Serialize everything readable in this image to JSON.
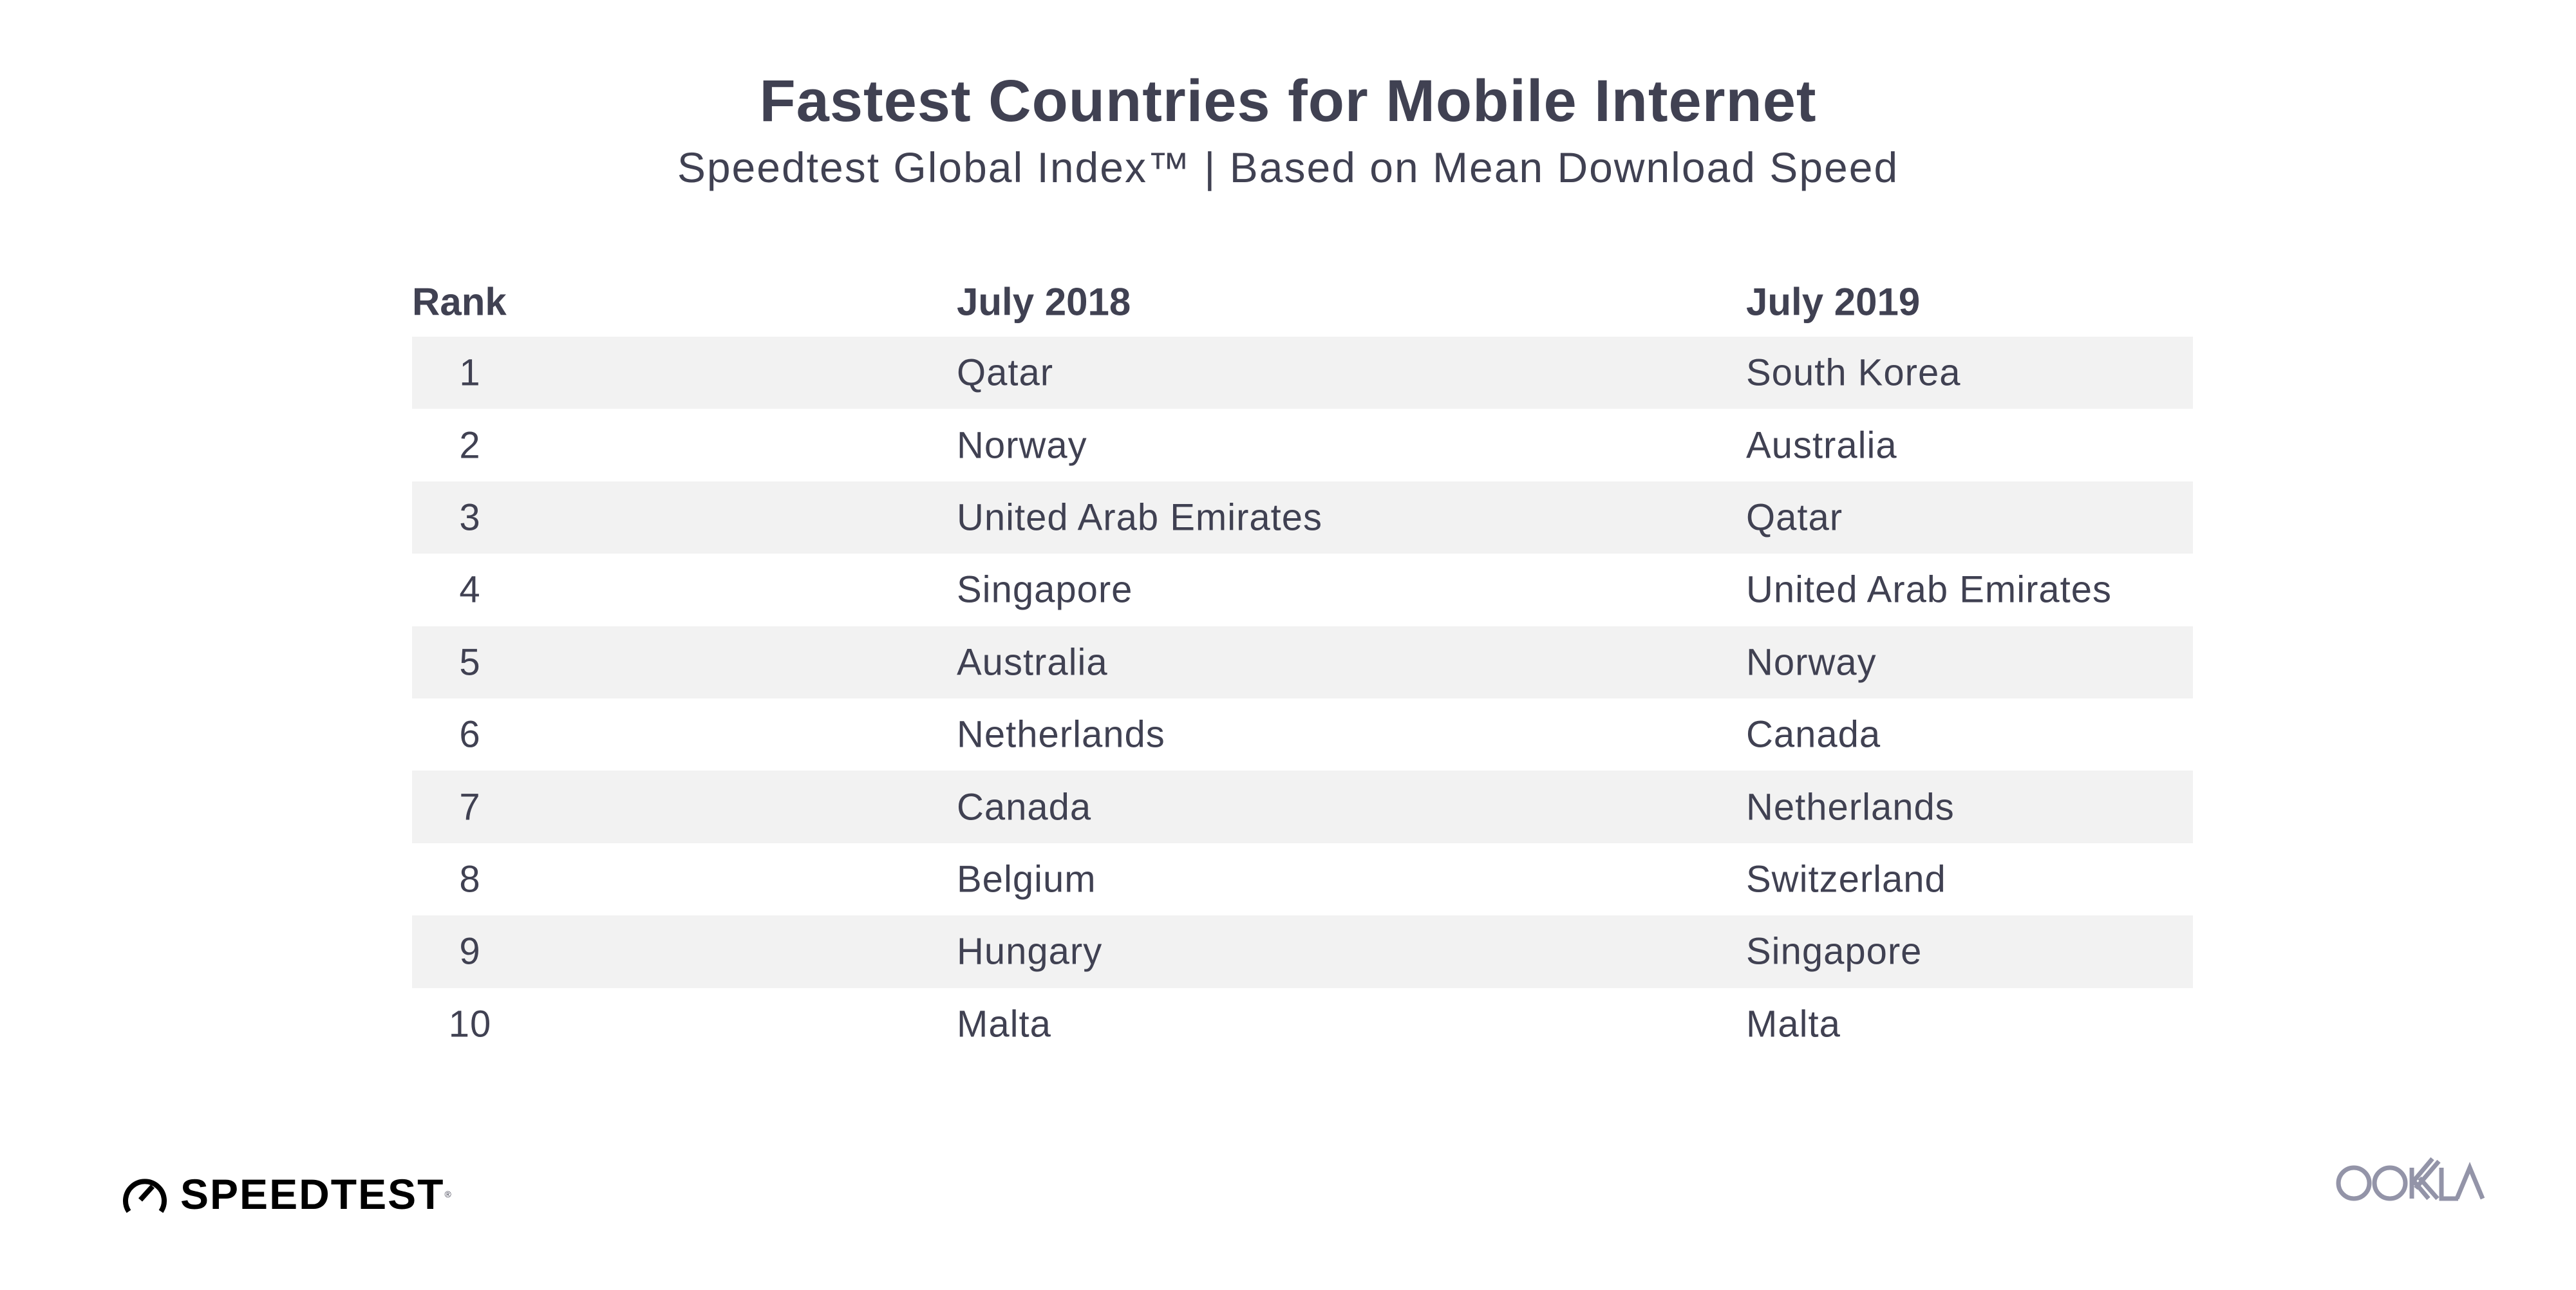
{
  "header": {
    "title": "Fastest Countries for Mobile Internet",
    "subtitle": "Speedtest Global Index™ | Based on Mean Download Speed"
  },
  "table": {
    "columns": [
      "Rank",
      "July 2018",
      "July 2019"
    ],
    "rows": [
      [
        "1",
        "Qatar",
        "South Korea"
      ],
      [
        "2",
        "Norway",
        "Australia"
      ],
      [
        "3",
        "United Arab Emirates",
        "Qatar"
      ],
      [
        "4",
        "Singapore",
        "United Arab Emirates"
      ],
      [
        "5",
        "Australia",
        "Norway"
      ],
      [
        "6",
        "Netherlands",
        "Canada"
      ],
      [
        "7",
        "Canada",
        "Netherlands"
      ],
      [
        "8",
        "Belgium",
        "Switzerland"
      ],
      [
        "9",
        "Hungary",
        "Singapore"
      ],
      [
        "10",
        "Malta",
        "Malta"
      ]
    ],
    "stripe_color": "#f2f2f2",
    "text_color": "#404152"
  },
  "footer": {
    "speedtest_logo": "SPEEDTEST",
    "ookla_logo": "OOKLA",
    "ookla_color": "#9394a8"
  }
}
